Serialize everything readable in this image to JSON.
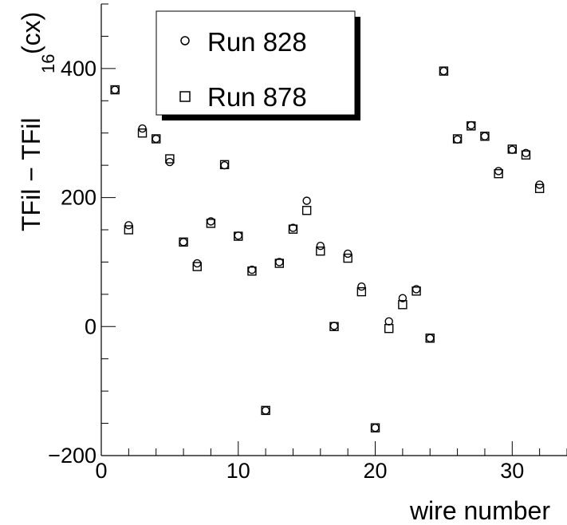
{
  "chart_data": {
    "type": "scatter",
    "xlabel": "wire number",
    "ylabel": "TFil − TFil",
    "ylabel_sub": "16",
    "ylabel_unit": "(cx)",
    "xlim": [
      0,
      34
    ],
    "ylim": [
      -200,
      500
    ],
    "x_ticks": [
      0,
      10,
      20,
      30
    ],
    "x_tick_labels": [
      "0",
      "10",
      "20",
      "30"
    ],
    "y_ticks": [
      -200,
      0,
      200,
      400
    ],
    "y_tick_labels": [
      "−200",
      "0",
      "200",
      "400"
    ],
    "grid": false,
    "legend_placement": "top-left",
    "series": [
      {
        "name": "Run 828",
        "marker": "circle",
        "x": [
          1,
          2,
          3,
          4,
          5,
          6,
          7,
          8,
          9,
          10,
          11,
          12,
          13,
          14,
          15,
          16,
          17,
          18,
          19,
          20,
          21,
          22,
          23,
          24,
          25,
          26,
          27,
          28,
          29,
          30,
          31,
          32
        ],
        "y": [
          367,
          157,
          307,
          291,
          255,
          131,
          98,
          163,
          250,
          141,
          88,
          -130,
          100,
          153,
          195,
          125,
          1,
          113,
          62,
          -157,
          8,
          44,
          58,
          -18,
          396,
          290,
          312,
          295,
          241,
          274,
          269,
          220
        ]
      },
      {
        "name": "Run 878",
        "marker": "square",
        "x": [
          1,
          2,
          3,
          4,
          5,
          6,
          7,
          8,
          9,
          10,
          11,
          12,
          13,
          14,
          15,
          16,
          17,
          18,
          19,
          20,
          21,
          22,
          23,
          24,
          25,
          26,
          27,
          28,
          29,
          30,
          31,
          32
        ],
        "y": [
          367,
          150,
          300,
          291,
          260,
          131,
          93,
          160,
          251,
          140,
          86,
          -130,
          98,
          151,
          180,
          117,
          0,
          106,
          54,
          -157,
          -3,
          34,
          55,
          -18,
          396,
          291,
          311,
          295,
          237,
          275,
          266,
          214
        ]
      }
    ]
  }
}
